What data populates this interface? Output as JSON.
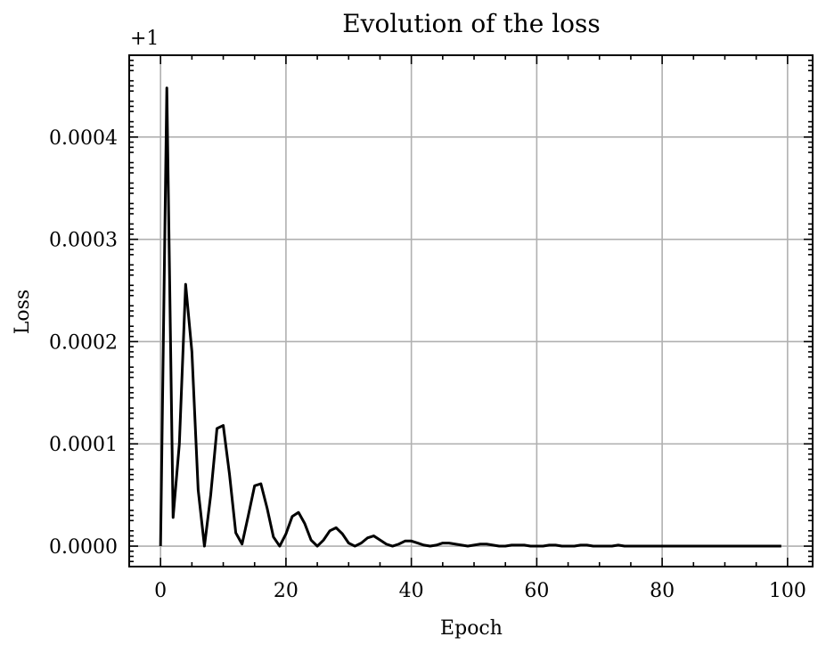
{
  "chart_data": {
    "type": "line",
    "title": "Evolution of the loss",
    "xlabel": "Epoch",
    "ylabel": "Loss",
    "y_offset_label": "+1",
    "xlim": [
      -5,
      104
    ],
    "ylim": [
      -2e-05,
      0.00048
    ],
    "x_ticks": [
      0,
      20,
      40,
      60,
      80,
      100
    ],
    "x_tick_labels": [
      "0",
      "20",
      "40",
      "60",
      "80",
      "100"
    ],
    "y_ticks": [
      0.0,
      0.0001,
      0.0002,
      0.0003,
      0.0004
    ],
    "y_tick_labels": [
      "0.0000",
      "0.0001",
      "0.0002",
      "0.0003",
      "0.0004"
    ],
    "grid": true,
    "series": [
      {
        "color": "#000000",
        "x": [
          0,
          1,
          2,
          3,
          4,
          5,
          6,
          7,
          8,
          9,
          10,
          11,
          12,
          13,
          14,
          15,
          16,
          17,
          18,
          19,
          20,
          21,
          22,
          23,
          24,
          25,
          26,
          27,
          28,
          29,
          30,
          31,
          32,
          33,
          34,
          35,
          36,
          37,
          38,
          39,
          40,
          41,
          42,
          43,
          44,
          45,
          46,
          47,
          48,
          49,
          50,
          51,
          52,
          53,
          54,
          55,
          56,
          57,
          58,
          59,
          60,
          61,
          62,
          63,
          64,
          65,
          66,
          67,
          68,
          69,
          70,
          71,
          72,
          73,
          74,
          75,
          76,
          77,
          78,
          79,
          80,
          81,
          82,
          83,
          84,
          85,
          86,
          87,
          88,
          89,
          90,
          91,
          92,
          93,
          94,
          95,
          96,
          97,
          98,
          99
        ],
        "values": [
          0.0,
          0.000448,
          2.8e-05,
          0.0001,
          0.000256,
          0.00019,
          5.5e-05,
          0.0,
          5e-05,
          0.000115,
          0.000118,
          7e-05,
          1.3e-05,
          2e-06,
          3e-05,
          5.9e-05,
          6.1e-05,
          3.7e-05,
          9e-06,
          0.0,
          1.2e-05,
          2.9e-05,
          3.3e-05,
          2.2e-05,
          6e-06,
          0.0,
          6e-06,
          1.5e-05,
          1.8e-05,
          1.2e-05,
          3e-06,
          0.0,
          3e-06,
          8e-06,
          1e-05,
          6e-06,
          2e-06,
          0.0,
          2e-06,
          5e-06,
          5e-06,
          3e-06,
          1e-06,
          0.0,
          1e-06,
          3e-06,
          3e-06,
          2e-06,
          1e-06,
          0.0,
          1e-06,
          2e-06,
          2e-06,
          1e-06,
          0.0,
          0.0,
          1e-06,
          1e-06,
          1e-06,
          0.0,
          0.0,
          0.0,
          1e-06,
          1e-06,
          0.0,
          0.0,
          0.0,
          1e-06,
          1e-06,
          0.0,
          0.0,
          0.0,
          0.0,
          1e-06,
          0.0,
          0.0,
          0.0,
          0.0,
          0.0,
          0.0,
          0.0,
          0.0,
          0.0,
          0.0,
          0.0,
          0.0,
          0.0,
          0.0,
          0.0,
          0.0,
          0.0,
          0.0,
          0.0,
          0.0,
          0.0,
          0.0,
          0.0,
          0.0,
          0.0,
          0.0
        ]
      }
    ]
  }
}
